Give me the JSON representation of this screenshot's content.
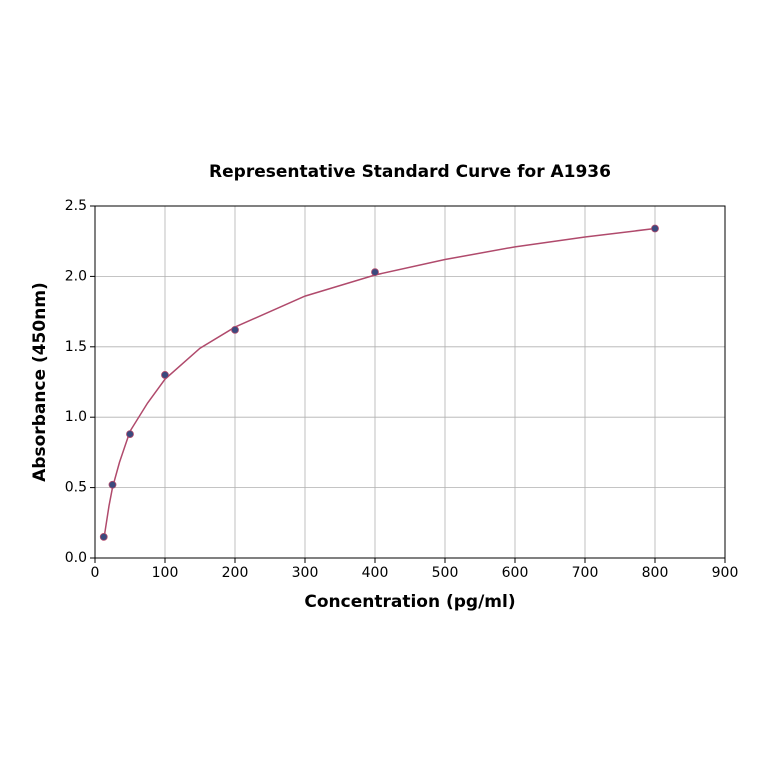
{
  "chart_data": {
    "type": "scatter",
    "title": "Representative Standard Curve for A1936",
    "xlabel": "Concentration (pg/ml)",
    "ylabel": "Absorbance (450nm)",
    "x": [
      12.5,
      25,
      50,
      100,
      200,
      400,
      800
    ],
    "values": [
      0.15,
      0.52,
      0.88,
      1.3,
      1.62,
      2.03,
      2.34
    ],
    "color": "#3b4a7e",
    "fit": {
      "x": [
        12.5,
        20,
        25,
        35,
        50,
        75,
        100,
        150,
        200,
        300,
        400,
        500,
        600,
        700,
        800
      ],
      "values": [
        0.13,
        0.37,
        0.5,
        0.68,
        0.9,
        1.1,
        1.27,
        1.49,
        1.64,
        1.86,
        2.01,
        2.12,
        2.21,
        2.28,
        2.34
      ],
      "color": "#b04a6c"
    },
    "xlim": [
      0,
      900
    ],
    "xticks": [
      0,
      100,
      200,
      300,
      400,
      500,
      600,
      700,
      800,
      900
    ],
    "ylim": [
      0,
      2.5
    ],
    "yticks": [
      {
        "value": 0,
        "label": "0.0"
      },
      {
        "value": 0.5,
        "label": "0.5"
      },
      {
        "value": 1,
        "label": "1.0"
      },
      {
        "value": 1.5,
        "label": "1.5"
      },
      {
        "value": 2,
        "label": "2.0"
      },
      {
        "value": 2.5,
        "label": "2.5"
      }
    ],
    "grid": true
  }
}
